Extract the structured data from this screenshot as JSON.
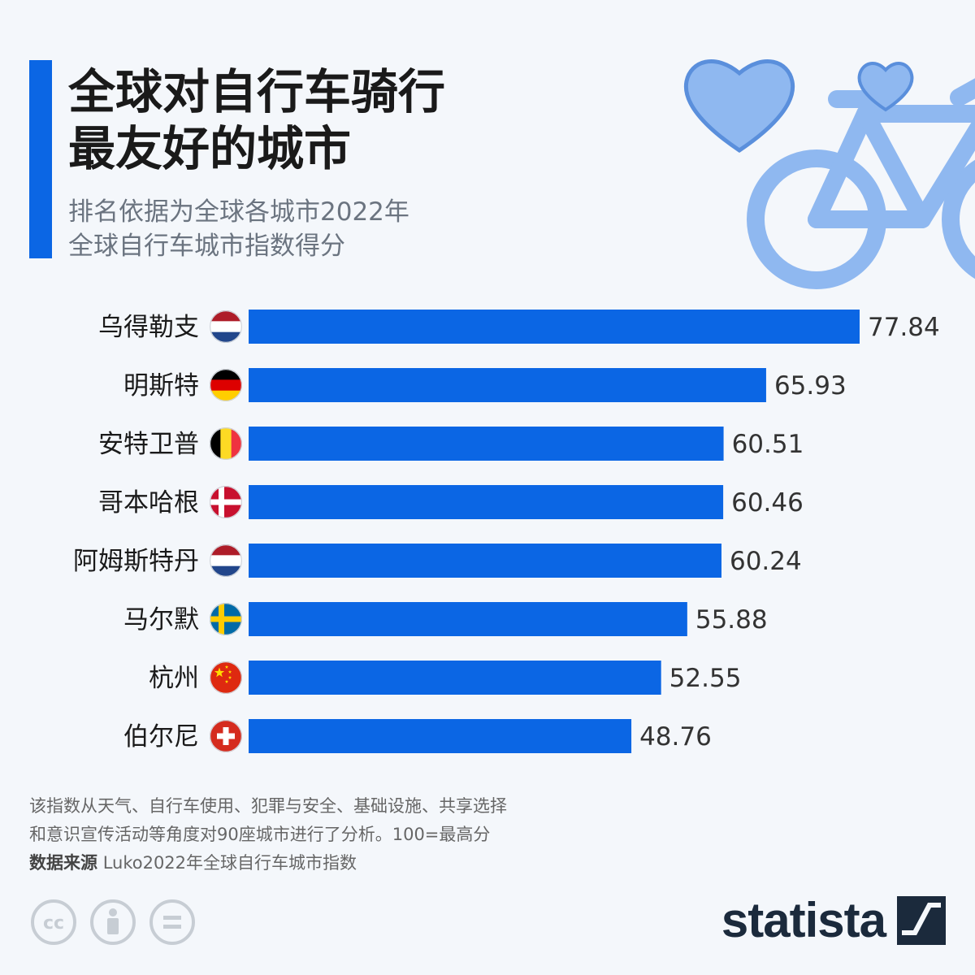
{
  "header": {
    "title_line1": "全球对自行车骑行",
    "title_line2": "最友好的城市",
    "subtitle_line1": "排名依据为全球各城市2022年",
    "subtitle_line2": "全球自行车城市指数得分"
  },
  "chart_data": {
    "type": "bar",
    "orientation": "horizontal",
    "title": "全球对自行车骑行最友好的城市",
    "subtitle": "排名依据为全球各城市2022年全球自行车城市指数得分",
    "categories": [
      "乌得勒支",
      "明斯特",
      "安特卫普",
      "哥本哈根",
      "阿姆斯特丹",
      "马尔默",
      "杭州",
      "伯尔尼"
    ],
    "values": [
      77.84,
      65.93,
      60.51,
      60.46,
      60.24,
      55.88,
      52.55,
      48.76
    ],
    "value_labels": [
      "77.84",
      "65.93",
      "60.51",
      "60.46",
      "60.24",
      "55.88",
      "52.55",
      "48.76"
    ],
    "flags": [
      "netherlands",
      "germany",
      "belgium",
      "denmark",
      "netherlands",
      "sweden",
      "china",
      "switzerland"
    ],
    "xlim": [
      0,
      77.84
    ],
    "xlabel": "",
    "ylabel": "",
    "grid": false,
    "bar_color": "#0b66e4"
  },
  "footer": {
    "note_line1": "该指数从天气、自行车使用、犯罪与安全、基础设施、共享选择",
    "note_line2": "和意识宣传活动等角度对90座城市进行了分析。100=最高分",
    "source_label": "数据来源",
    "source_text": "Luko2022年全球自行车城市指数",
    "license_icons": [
      "cc-icon",
      "person-icon",
      "equals-icon"
    ],
    "brand": "statista"
  },
  "colors": {
    "accent": "#0b66e4",
    "background": "#f4f7fb",
    "decoration": "#8fb8f0",
    "brand_text": "#1b2a3c"
  }
}
